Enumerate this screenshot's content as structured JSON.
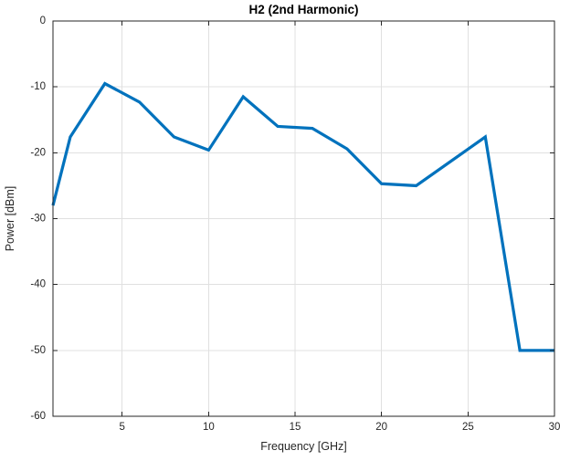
{
  "chart_data": {
    "type": "line",
    "title": "H2 (2nd Harmonic)",
    "xlabel": "Frequency [GHz]",
    "ylabel": "Power [dBm]",
    "xlim": [
      1,
      30
    ],
    "ylim": [
      -60,
      0
    ],
    "xticks": [
      5,
      10,
      15,
      20,
      25,
      30
    ],
    "yticks": [
      0,
      -10,
      -20,
      -30,
      -40,
      -50,
      -60
    ],
    "grid": true,
    "legend_position": "none",
    "line_color": "#0072BD",
    "axis_color": "#262626",
    "grid_color": "#e0e0e0",
    "background_color": "#ffffff",
    "series": [
      {
        "name": "H2 (2nd Harmonic)",
        "x": [
          1,
          2,
          4,
          6,
          8,
          10,
          12,
          14,
          16,
          18,
          20,
          22,
          26,
          28,
          30
        ],
        "y": [
          -28,
          -17.6,
          -9.5,
          -12.3,
          -17.6,
          -19.6,
          -11.5,
          -16.0,
          -16.3,
          -19.4,
          -24.7,
          -25.0,
          -17.6,
          -50.0,
          -50.0
        ]
      }
    ]
  }
}
